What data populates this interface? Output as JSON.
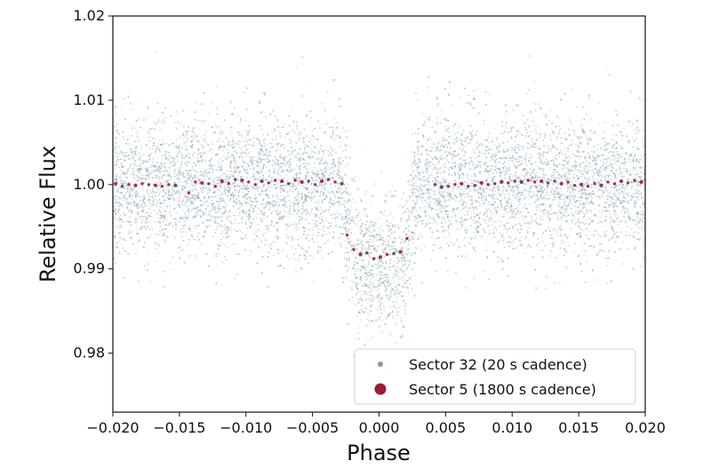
{
  "chart_data": {
    "type": "scatter",
    "xlabel": "Phase",
    "ylabel": "Relative Flux",
    "xlim": [
      -0.02,
      0.02
    ],
    "ylim": [
      0.973,
      1.02
    ],
    "x_ticks": [
      -0.02,
      -0.015,
      -0.01,
      -0.005,
      0.0,
      0.005,
      0.01,
      0.015,
      0.02
    ],
    "x_tick_labels": [
      "−0.020",
      "−0.015",
      "−0.010",
      "−0.005",
      "0.000",
      "0.005",
      "0.010",
      "0.015",
      "0.020"
    ],
    "y_ticks": [
      0.98,
      0.99,
      1.0,
      1.01,
      1.02
    ],
    "y_tick_labels": [
      "0.98",
      "0.99",
      "1.00",
      "1.01",
      "1.02"
    ],
    "grid": false,
    "legend_position": "bottom-right",
    "series": [
      {
        "name": "Sector 32 (20 s cadence)",
        "marker": "small-dot",
        "color": "#8a97a6",
        "out_of_transit_flux": 1.0,
        "scatter_sigma": 0.004,
        "in_transit_flux": 0.9905,
        "ingress_phase": [
          -0.0028,
          -0.0018
        ],
        "egress_phase": [
          0.0018,
          0.0028
        ]
      },
      {
        "name": "Sector 5 (1800 s cadence)",
        "marker": "large-dot",
        "color": "#9b1b3a",
        "points": [
          [
            -0.0198,
            1.0001
          ],
          [
            -0.0193,
            0.9998
          ],
          [
            -0.0188,
            1.0
          ],
          [
            -0.0183,
            0.9999
          ],
          [
            -0.0178,
            1.0001
          ],
          [
            -0.0173,
            1.0
          ],
          [
            -0.0168,
            0.9999
          ],
          [
            -0.0163,
            0.9998
          ],
          [
            -0.0158,
            1.0
          ],
          [
            -0.0153,
            0.9999
          ],
          [
            -0.0143,
            0.999
          ],
          [
            -0.0138,
            1.0003
          ],
          [
            -0.0133,
            1.0002
          ],
          [
            -0.0128,
            1.0001
          ],
          [
            -0.0123,
            0.9998
          ],
          [
            -0.0118,
            1.0004
          ],
          [
            -0.0113,
            1.0001
          ],
          [
            -0.0108,
            1.0006
          ],
          [
            -0.0103,
            1.0005
          ],
          [
            -0.0098,
            1.0003
          ],
          [
            -0.0093,
            1.0
          ],
          [
            -0.0088,
            1.0004
          ],
          [
            -0.0083,
            1.0002
          ],
          [
            -0.0078,
            1.0005
          ],
          [
            -0.0073,
            1.0004
          ],
          [
            -0.0068,
            1.0001
          ],
          [
            -0.0063,
            1.0005
          ],
          [
            -0.0058,
            1.0003
          ],
          [
            -0.0053,
            1.0004
          ],
          [
            -0.0048,
            1.0
          ],
          [
            -0.0043,
            1.0004
          ],
          [
            -0.0038,
            1.0006
          ],
          [
            -0.0033,
            1.0003
          ],
          [
            -0.0028,
            1.0001
          ],
          [
            -0.0024,
            0.994
          ],
          [
            -0.0019,
            0.9923
          ],
          [
            -0.0014,
            0.9917
          ],
          [
            -0.0009,
            0.9919
          ],
          [
            -0.0004,
            0.9912
          ],
          [
            0.0001,
            0.9914
          ],
          [
            0.0006,
            0.9917
          ],
          [
            0.0011,
            0.9918
          ],
          [
            0.0016,
            0.992
          ],
          [
            0.0021,
            0.9936
          ],
          [
            0.0042,
            1.0
          ],
          [
            0.0047,
            0.9997
          ],
          [
            0.0052,
            0.9998
          ],
          [
            0.0057,
            1.0
          ],
          [
            0.0062,
            1.0001
          ],
          [
            0.0067,
            0.9998
          ],
          [
            0.0072,
            0.9999
          ],
          [
            0.0077,
            1.0002
          ],
          [
            0.0082,
            1.0
          ],
          [
            0.0087,
            1.0001
          ],
          [
            0.0092,
            1.0003
          ],
          [
            0.0097,
            1.0002
          ],
          [
            0.0102,
            1.0004
          ],
          [
            0.0107,
            1.0003
          ],
          [
            0.0112,
            1.0005
          ],
          [
            0.0117,
            1.0003
          ],
          [
            0.0122,
            1.0004
          ],
          [
            0.0127,
            1.0002
          ],
          [
            0.0132,
            1.0004
          ],
          [
            0.0137,
            1.0001
          ],
          [
            0.0142,
            1.0003
          ],
          [
            0.0147,
            0.9999
          ],
          [
            0.0152,
            1.0
          ],
          [
            0.0157,
            0.9998
          ],
          [
            0.0162,
            1.0001
          ],
          [
            0.0167,
            0.9999
          ],
          [
            0.0172,
            1.0003
          ],
          [
            0.0177,
            1.0001
          ],
          [
            0.0182,
            1.0004
          ],
          [
            0.0187,
            1.0002
          ],
          [
            0.0192,
            1.0005
          ],
          [
            0.0197,
            1.0003
          ]
        ]
      }
    ]
  }
}
